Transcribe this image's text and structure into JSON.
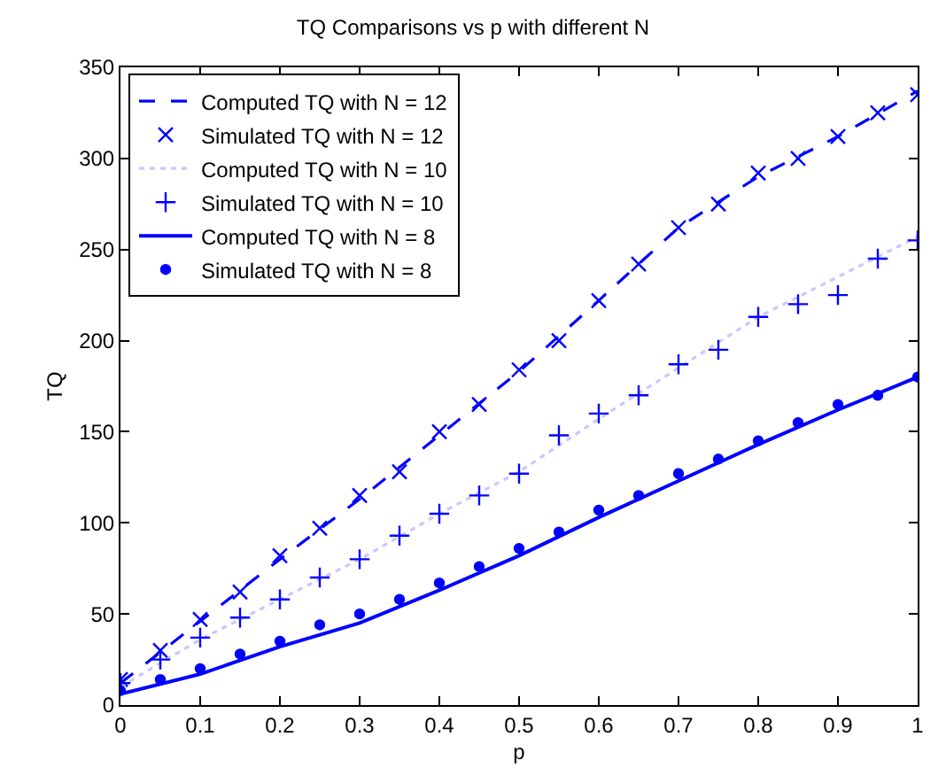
{
  "chart_data": {
    "type": "line",
    "title": "TQ Comparisons vs p with different N",
    "xlabel": "p",
    "ylabel": "TQ",
    "xlim": [
      0,
      1
    ],
    "xticks": [
      0,
      0.1,
      0.2,
      0.3,
      0.4,
      0.5,
      0.6,
      0.7,
      0.8,
      0.9,
      1
    ],
    "ylim": [
      0,
      350
    ],
    "yticks": [
      0,
      50,
      100,
      150,
      200,
      250,
      300,
      350
    ],
    "legend": "top left",
    "series": [
      {
        "name": "Computed TQ with N = 12",
        "line_style": "dashed",
        "marker": "none",
        "color": "#0000ff",
        "x": [
          0,
          0.1,
          0.2,
          0.3,
          0.4,
          0.5,
          0.6,
          0.7,
          0.8,
          0.9,
          1
        ],
        "values": [
          12,
          46,
          80,
          113,
          148,
          183,
          222,
          262,
          290,
          312,
          337
        ]
      },
      {
        "name": "Simulated TQ with N = 12",
        "type": "scatter",
        "marker": "x",
        "color": "#0000ff",
        "x": [
          0,
          0.05,
          0.1,
          0.15,
          0.2,
          0.25,
          0.3,
          0.35,
          0.4,
          0.45,
          0.5,
          0.55,
          0.6,
          0.65,
          0.7,
          0.75,
          0.8,
          0.85,
          0.9,
          0.95,
          1
        ],
        "values": [
          14,
          30,
          47,
          62,
          82,
          97,
          115,
          128,
          150,
          165,
          184,
          200,
          222,
          242,
          262,
          275,
          292,
          300,
          312,
          325,
          335
        ]
      },
      {
        "name": "Computed TQ with N = 10",
        "line_style": "dotted",
        "marker": "none",
        "color": "#c8c8ff",
        "x": [
          0,
          0.1,
          0.2,
          0.3,
          0.4,
          0.5,
          0.6,
          0.7,
          0.8,
          0.9,
          1
        ],
        "values": [
          10,
          36,
          58,
          80,
          105,
          128,
          157,
          185,
          213,
          235,
          257
        ]
      },
      {
        "name": "Simulated TQ with N = 10",
        "type": "scatter",
        "marker": "cross",
        "color": "#0000ff",
        "x": [
          0,
          0.05,
          0.1,
          0.15,
          0.2,
          0.25,
          0.3,
          0.35,
          0.4,
          0.45,
          0.5,
          0.55,
          0.6,
          0.65,
          0.7,
          0.75,
          0.8,
          0.85,
          0.9,
          0.95,
          1
        ],
        "values": [
          12,
          25,
          37,
          48,
          58,
          70,
          80,
          93,
          105,
          115,
          127,
          148,
          160,
          170,
          187,
          195,
          213,
          220,
          225,
          245,
          255
        ]
      },
      {
        "name": "Computed TQ with N = 8",
        "line_style": "solid",
        "marker": "none",
        "color": "#0000ff",
        "x": [
          0,
          0.1,
          0.2,
          0.3,
          0.4,
          0.5,
          0.6,
          0.7,
          0.8,
          0.9,
          1
        ],
        "values": [
          6,
          17,
          32,
          45,
          63,
          82,
          103,
          123,
          143,
          162,
          180
        ]
      },
      {
        "name": "Simulated TQ with N = 8",
        "type": "scatter",
        "marker": "circle",
        "color": "#0000ff",
        "x": [
          0,
          0.05,
          0.1,
          0.15,
          0.2,
          0.25,
          0.3,
          0.35,
          0.4,
          0.45,
          0.5,
          0.55,
          0.6,
          0.65,
          0.7,
          0.75,
          0.8,
          0.85,
          0.9,
          0.95,
          1
        ],
        "values": [
          8,
          14,
          20,
          28,
          35,
          44,
          50,
          58,
          67,
          76,
          86,
          95,
          107,
          115,
          127,
          135,
          145,
          155,
          165,
          170,
          180
        ]
      }
    ]
  }
}
